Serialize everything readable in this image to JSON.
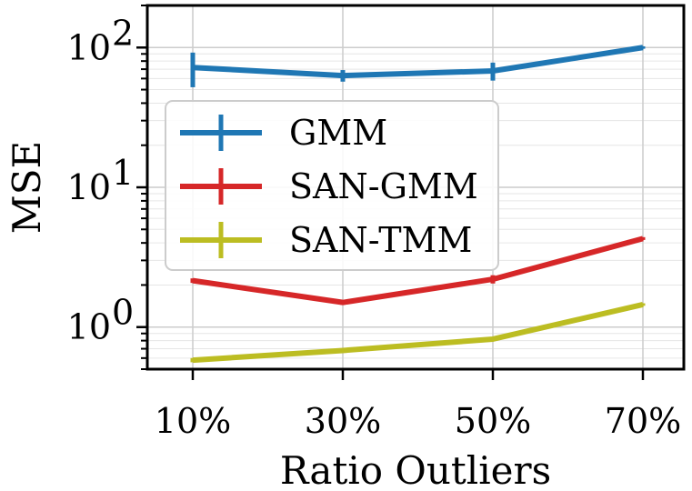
{
  "chart_data": {
    "type": "line",
    "title": "",
    "xlabel": "Ratio Outliers",
    "ylabel": "MSE",
    "yscale": "log",
    "categories": [
      "10%",
      "30%",
      "50%",
      "70%"
    ],
    "ylim": [
      0.5,
      200
    ],
    "yticks": [
      {
        "value": 1,
        "base": "10",
        "exp": "0"
      },
      {
        "value": 10,
        "base": "10",
        "exp": "1"
      },
      {
        "value": 100,
        "base": "10",
        "exp": "2"
      }
    ],
    "grid": true,
    "legend_position": "center-left",
    "series": [
      {
        "name": "GMM",
        "color": "#1f77b4",
        "values": [
          72,
          63,
          68,
          100
        ],
        "err": [
          20,
          6,
          10,
          2
        ]
      },
      {
        "name": "SAN-GMM",
        "color": "#d62728",
        "values": [
          2.15,
          1.5,
          2.2,
          4.3
        ],
        "err": [
          0.08,
          0.06,
          0.15,
          0.1
        ]
      },
      {
        "name": "SAN-TMM",
        "color": "#bcbd22",
        "values": [
          0.58,
          0.68,
          0.82,
          1.45
        ],
        "err": [
          0.02,
          0.02,
          0.02,
          0.03
        ]
      }
    ]
  }
}
